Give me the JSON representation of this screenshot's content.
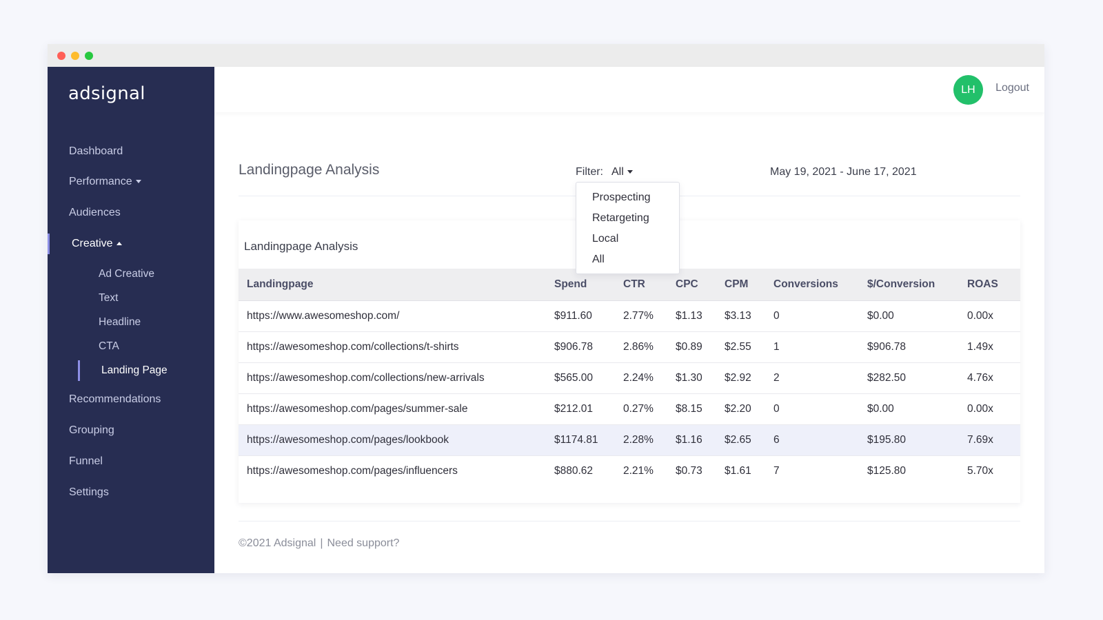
{
  "window": {
    "controls": [
      "close",
      "minimize",
      "maximize"
    ]
  },
  "sidebar": {
    "brand": "adsignal",
    "items": [
      {
        "label": "Dashboard"
      },
      {
        "label": "Performance"
      },
      {
        "label": "Audiences"
      },
      {
        "label": "Creative"
      },
      {
        "label": "Recommendations"
      },
      {
        "label": "Grouping"
      },
      {
        "label": "Funnel"
      },
      {
        "label": "Settings"
      }
    ],
    "creative_sub": [
      {
        "label": "Ad Creative"
      },
      {
        "label": "Text"
      },
      {
        "label": "Headline"
      },
      {
        "label": "CTA"
      },
      {
        "label": "Landing Page"
      }
    ],
    "active_item": "Creative",
    "active_sub": "Landing Page"
  },
  "header": {
    "avatar_initials": "LH",
    "logout_label": "Logout"
  },
  "main": {
    "title": "Landingpage Analysis",
    "filter_label": "Filter:",
    "filter_value": "All",
    "filter_options": [
      "Prospecting",
      "Retargeting",
      "Local",
      "All"
    ],
    "date_range": "May 19, 2021 - June 17, 2021",
    "card_title": "Landingpage Analysis",
    "table": {
      "columns": [
        "Landingpage",
        "Spend",
        "CTR",
        "CPC",
        "CPM",
        "Conversions",
        "$/Conversion",
        "ROAS"
      ],
      "rows": [
        [
          "https://www.awesomeshop.com/",
          "$911.60",
          "2.77%",
          "$1.13",
          "$3.13",
          "0",
          "$0.00",
          "0.00x"
        ],
        [
          "https://awesomeshop.com/collections/t-shirts",
          "$906.78",
          "2.86%",
          "$0.89",
          "$2.55",
          "1",
          "$906.78",
          "1.49x"
        ],
        [
          "https://awesomeshop.com/collections/new-arrivals",
          "$565.00",
          "2.24%",
          "$1.30",
          "$2.92",
          "2",
          "$282.50",
          "4.76x"
        ],
        [
          "https://awesomeshop.com/pages/summer-sale",
          "$212.01",
          "0.27%",
          "$8.15",
          "$2.20",
          "0",
          "$0.00",
          "0.00x"
        ],
        [
          "https://awesomeshop.com/pages/lookbook",
          "$1174.81",
          "2.28%",
          "$1.16",
          "$2.65",
          "6",
          "$195.80",
          "7.69x"
        ],
        [
          "https://awesomeshop.com/pages/influencers",
          "$880.62",
          "2.21%",
          "$0.73",
          "$1.61",
          "7",
          "$125.80",
          "5.70x"
        ]
      ],
      "highlighted_row": 4
    }
  },
  "footer": {
    "copyright": "©2021 Adsignal",
    "separator": "|",
    "support_link": "Need support?"
  },
  "colors": {
    "sidebar_bg": "#272d52",
    "accent": "#8d8fe6",
    "avatar_bg": "#22c06a",
    "highlight_row": "#eef0fa"
  }
}
